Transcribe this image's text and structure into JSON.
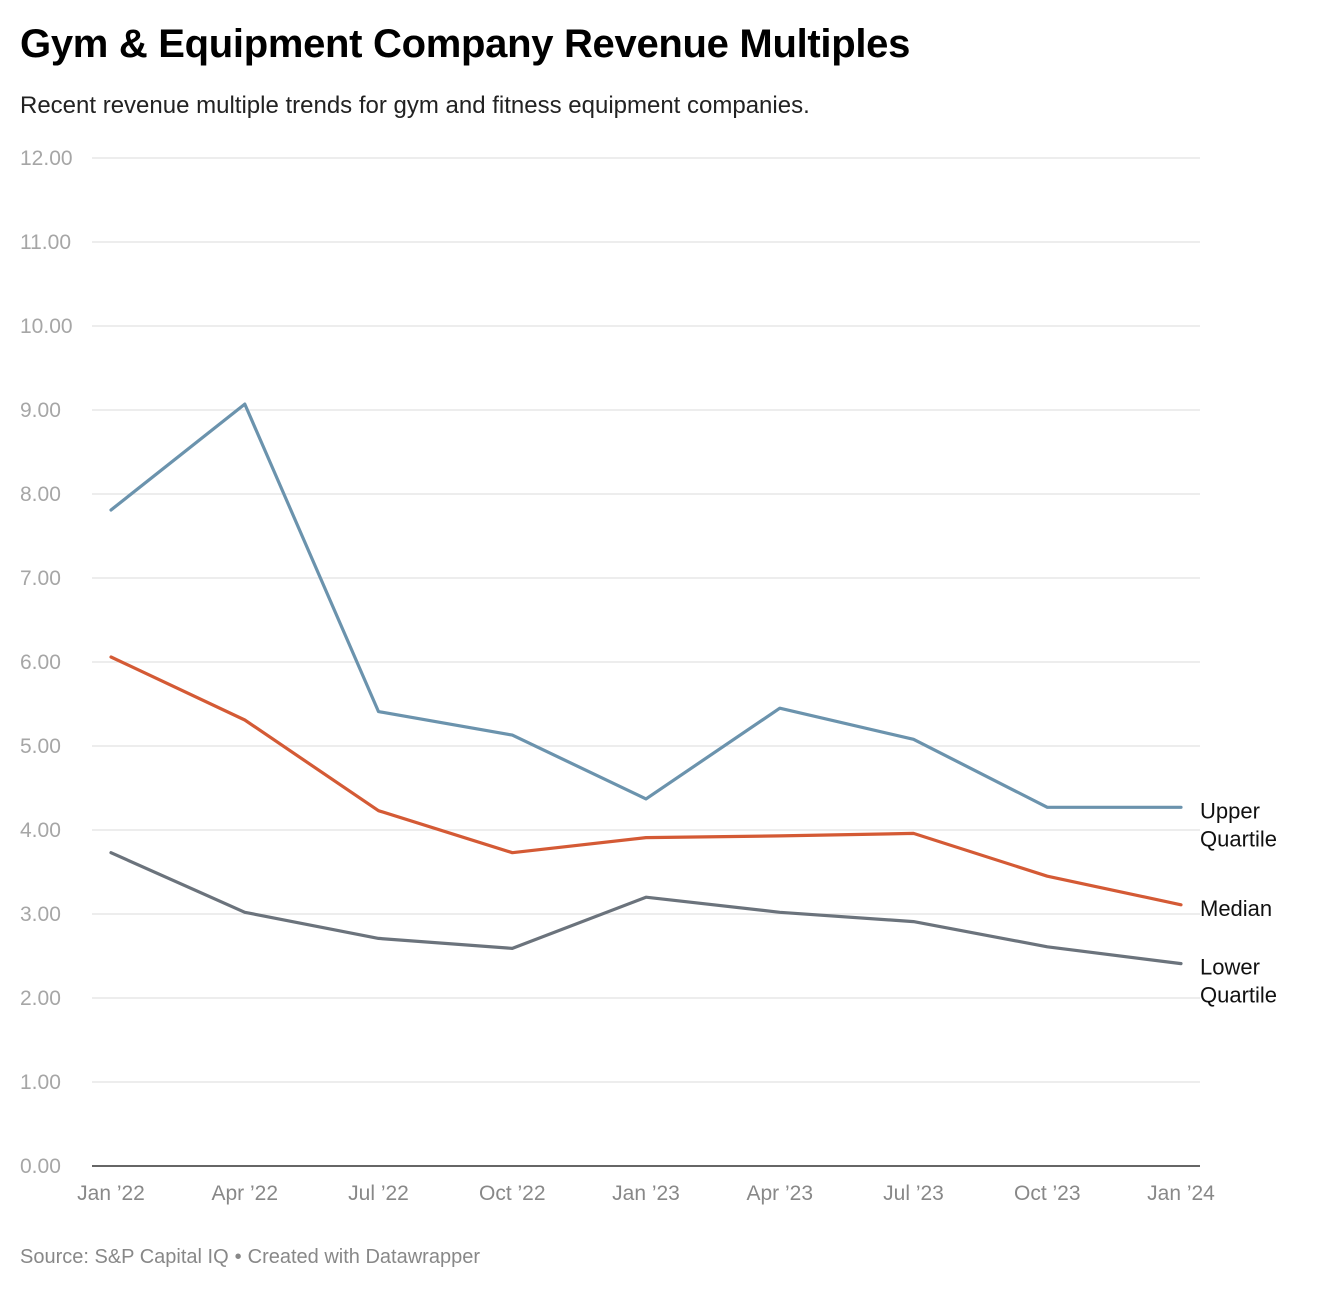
{
  "header": {
    "title": "Gym & Equipment Company Revenue Multiples",
    "subtitle": "Recent revenue multiple trends for gym and fitness equipment companies."
  },
  "footer": {
    "source": "Source: S&P Capital IQ",
    "separator": "•",
    "credit": "Created with Datawrapper"
  },
  "chart_data": {
    "type": "line",
    "title": "Gym & Equipment Company Revenue Multiples",
    "subtitle": "Recent revenue multiple trends for gym and fitness equipment companies.",
    "x": [
      "Jan ’22",
      "Apr ’22",
      "Jul ’22",
      "Oct ’22",
      "Jan ’23",
      "Apr ’23",
      "Jul ’23",
      "Oct ’23",
      "Jan ’24"
    ],
    "ylim": [
      0,
      12
    ],
    "yticks": [
      "0.00",
      "1.00",
      "2.00",
      "3.00",
      "4.00",
      "5.00",
      "6.00",
      "7.00",
      "8.00",
      "9.00",
      "10.00",
      "11.00",
      "12.00"
    ],
    "grid": true,
    "legend": "direct labels at line ends (right)",
    "series": [
      {
        "name": "Upper Quartile",
        "label_lines": [
          "Upper",
          "Quartile"
        ],
        "color": "#6b93ad",
        "values": [
          7.81,
          9.07,
          5.41,
          5.13,
          4.37,
          5.45,
          5.08,
          4.27,
          4.27
        ]
      },
      {
        "name": "Median",
        "label_lines": [
          "Median"
        ],
        "color": "#d45a35",
        "values": [
          6.06,
          5.31,
          4.23,
          3.73,
          3.91,
          3.93,
          3.96,
          3.45,
          3.11
        ]
      },
      {
        "name": "Lower Quartile",
        "label_lines": [
          "Lower",
          "Quartile"
        ],
        "color": "#6b737c",
        "values": [
          3.73,
          3.02,
          2.71,
          2.59,
          3.2,
          3.02,
          2.91,
          2.61,
          2.41
        ]
      }
    ],
    "source": "Source: S&P Capital IQ"
  }
}
